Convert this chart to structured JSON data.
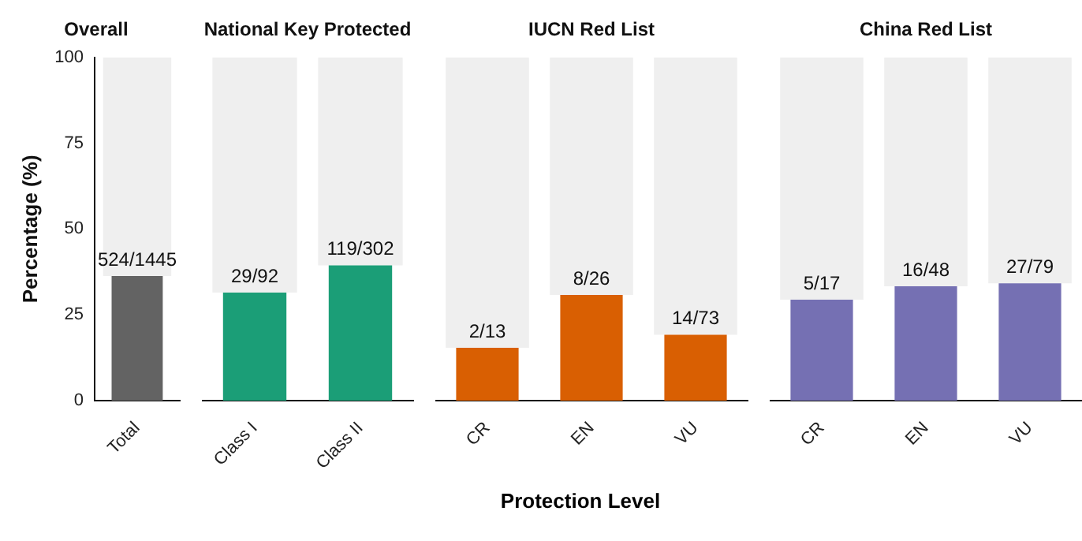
{
  "chart_data": [
    {
      "type": "bar",
      "title": "Overall",
      "ylabel": "Percentage (%)",
      "categories": [
        "Total"
      ],
      "stacked": true,
      "ylim": [
        0,
        100
      ],
      "yticks": [
        0,
        25,
        50,
        75,
        100
      ],
      "grid": false,
      "legend": false,
      "series": [
        {
          "color": "#636363",
          "values": [
            36.3
          ],
          "value_labels": [
            "524/1445"
          ]
        },
        {
          "color": "#efefef",
          "values": [
            63.7
          ]
        }
      ]
    },
    {
      "type": "bar",
      "title": "National Key Protected",
      "categories": [
        "Class I",
        "Class II"
      ],
      "stacked": true,
      "ylim": [
        0,
        100
      ],
      "tick_labels": "x",
      "grid": false,
      "legend": false,
      "series": [
        {
          "color": "#1b9e77",
          "values": [
            31.5,
            39.4
          ],
          "value_labels": [
            "29/92",
            "119/302"
          ]
        },
        {
          "color": "#efefef",
          "values": [
            68.5,
            60.6
          ]
        }
      ]
    },
    {
      "type": "bar",
      "title": "IUCN Red List",
      "xlabel": "Protection Level",
      "categories": [
        "CR",
        "EN",
        "VU"
      ],
      "stacked": true,
      "ylim": [
        0,
        100
      ],
      "tick_labels": "x",
      "grid": false,
      "legend": false,
      "series": [
        {
          "color": "#d95f02",
          "values": [
            15.4,
            30.8,
            19.2
          ],
          "value_labels": [
            "2/13",
            "8/26",
            "14/73"
          ]
        },
        {
          "color": "#efefef",
          "values": [
            84.6,
            69.2,
            80.8
          ]
        }
      ]
    },
    {
      "type": "bar",
      "title": "China Red List",
      "categories": [
        "CR",
        "EN",
        "VU"
      ],
      "stacked": true,
      "ylim": [
        0,
        100
      ],
      "tick_labels": "x",
      "grid": false,
      "legend": false,
      "series": [
        {
          "color": "#7570b3",
          "values": [
            29.4,
            33.3,
            34.2
          ],
          "value_labels": [
            "5/17",
            "16/48",
            "27/79"
          ]
        },
        {
          "color": "#efefef",
          "values": [
            70.6,
            66.7,
            65.8
          ]
        }
      ]
    }
  ]
}
